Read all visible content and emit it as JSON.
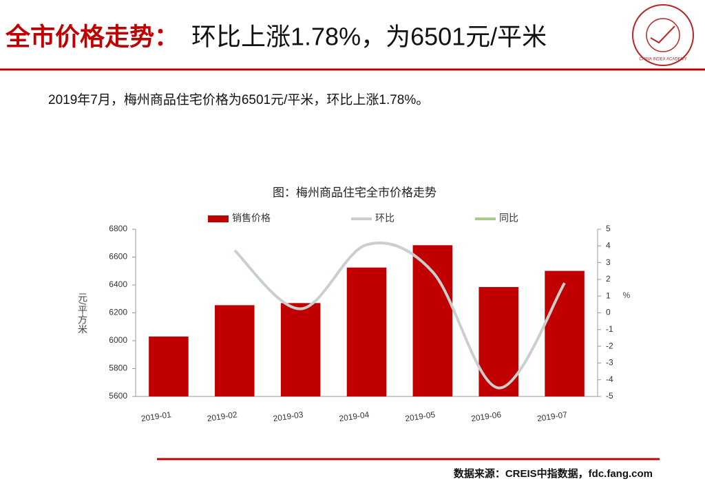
{
  "header": {
    "title_red": "全市价格走势：",
    "title_black": "环比上涨1.78%，为6501元/平米",
    "logo_text": "CHINA INDEX ACADEMY"
  },
  "summary": "2019年7月，梅州商品住宅价格为6501元/平米，环比上涨1.78%。",
  "chart_data": {
    "type": "bar",
    "title": "图：梅州商品住宅全市价格走势",
    "categories": [
      "2019-01",
      "2019-02",
      "2019-03",
      "2019-04",
      "2019-05",
      "2019-06",
      "2019-07"
    ],
    "series": [
      {
        "name": "销售价格",
        "type": "bar",
        "color": "#c00000",
        "values": [
          6030,
          6255,
          6270,
          6525,
          6685,
          6385,
          6501
        ]
      },
      {
        "name": "环比",
        "type": "line",
        "axis": "y2",
        "color": "#c9cfcd",
        "values": [
          null,
          3.73,
          0.24,
          4.07,
          2.45,
          -4.49,
          1.78
        ]
      },
      {
        "name": "同比",
        "type": "line",
        "axis": "y2",
        "color": "#a9c98f",
        "values": [
          null,
          null,
          null,
          null,
          null,
          null,
          null
        ]
      }
    ],
    "ylabel": "元/平方米",
    "y2label": "%",
    "ylim": [
      5600,
      6800
    ],
    "yticks": [
      5600,
      5800,
      6000,
      6200,
      6400,
      6600,
      6800
    ],
    "y2lim": [
      -5,
      5
    ],
    "y2ticks": [
      -5,
      -4,
      -3,
      -2,
      -1,
      0,
      1,
      2,
      3,
      4,
      5
    ],
    "legend": "top"
  },
  "source": "数据来源：CREIS中指数据，fdc.fang.com"
}
